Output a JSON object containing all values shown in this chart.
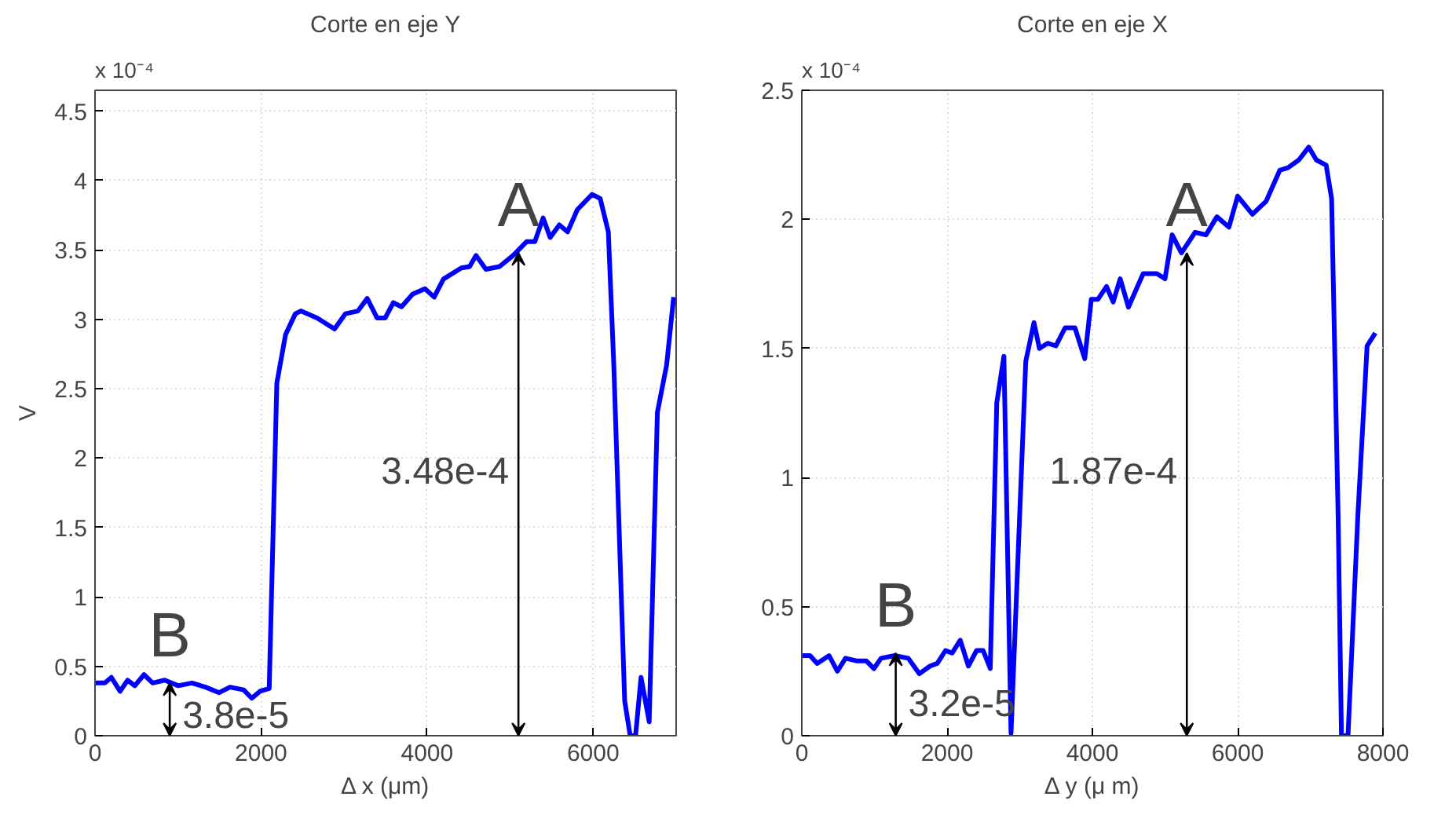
{
  "chart_data": [
    {
      "type": "line",
      "title": "Corte en eje Y",
      "xlabel": "Δ x (μm)",
      "ylabel": "V",
      "xlim": [
        0,
        7000
      ],
      "xticks": [
        0,
        2000,
        4000,
        6000
      ],
      "ylim": [
        0,
        4.65
      ],
      "yticks": [
        0,
        0.5,
        1,
        1.5,
        2,
        2.5,
        3,
        3.5,
        4,
        4.5
      ],
      "grid": true,
      "line_style": "solid",
      "marker": "none",
      "annotations": [
        "x 10⁻⁴",
        {
          "text": "A",
          "x": 5100,
          "y": 3.48
        },
        "3.48e-4",
        {
          "text": "B",
          "x": 900,
          "y": 0.38
        },
        "3.8e-5"
      ],
      "series": [
        {
          "color": "#0000ff",
          "x": [
            0,
            118,
            197,
            302,
            393,
            479,
            590,
            695,
            839,
            1003,
            1167,
            1331,
            1495,
            1626,
            1790,
            1888,
            1987,
            2098,
            2190,
            2295,
            2413,
            2479,
            2675,
            2885,
            3016,
            3167,
            3279,
            3397,
            3495,
            3593,
            3692,
            3823,
            3974,
            4085,
            4197,
            4413,
            4512,
            4590,
            4708,
            4872,
            5036,
            5200,
            5298,
            5397,
            5482,
            5593,
            5692,
            5810,
            5987,
            6085,
            6183,
            6249,
            6380,
            6446,
            6511,
            6577,
            6675,
            6774,
            6885,
            6970
          ],
          "values": [
            0.38,
            0.38,
            0.42,
            0.32,
            0.4,
            0.36,
            0.44,
            0.38,
            0.4,
            0.36,
            0.38,
            0.35,
            0.31,
            0.35,
            0.33,
            0.27,
            0.32,
            0.34,
            2.54,
            2.89,
            3.04,
            3.06,
            3.01,
            2.93,
            3.04,
            3.06,
            3.15,
            3.01,
            3.01,
            3.12,
            3.09,
            3.18,
            3.22,
            3.16,
            3.29,
            3.37,
            3.38,
            3.46,
            3.36,
            3.38,
            3.46,
            3.56,
            3.56,
            3.73,
            3.59,
            3.68,
            3.63,
            3.79,
            3.9,
            3.87,
            3.63,
            2.67,
            0.25,
            0,
            0,
            0.42,
            0.1,
            2.33,
            2.67,
            3.16
          ]
        }
      ]
    },
    {
      "type": "line",
      "title": "Corte en eje X",
      "xlabel": "Δ y (μ m)",
      "xlim": [
        0,
        8000
      ],
      "xticks": [
        0,
        2000,
        4000,
        6000,
        8000
      ],
      "ylim": [
        0,
        2.5
      ],
      "yticks": [
        0,
        0.5,
        1,
        1.5,
        2,
        2.5
      ],
      "grid": true,
      "line_style": "solid",
      "marker": "none",
      "annotations": [
        "x 10⁻⁴",
        {
          "text": "A",
          "x": 5300,
          "y": 1.87
        },
        "1.87e-4",
        {
          "text": "B",
          "x": 1293,
          "y": 0.32
        },
        "3.2e-5"
      ],
      "series": [
        {
          "color": "#0000ff",
          "x": [
            0,
            113,
            211,
            376,
            489,
            602,
            752,
            887,
            993,
            1090,
            1278,
            1466,
            1617,
            1767,
            1865,
            1978,
            2068,
            2181,
            2293,
            2406,
            2496,
            2594,
            2684,
            2782,
            2880,
            3083,
            3196,
            3271,
            3384,
            3497,
            3624,
            3760,
            3895,
            3985,
            4075,
            4195,
            4286,
            4383,
            4496,
            4699,
            4887,
            5000,
            5098,
            5226,
            5414,
            5564,
            5714,
            5880,
            6000,
            6203,
            6391,
            6579,
            6692,
            6842,
            6978,
            7083,
            7218,
            7293,
            7383,
            7429,
            7519,
            7654,
            7782,
            7895
          ],
          "values": [
            0.31,
            0.31,
            0.28,
            0.31,
            0.25,
            0.3,
            0.29,
            0.29,
            0.26,
            0.3,
            0.31,
            0.3,
            0.24,
            0.27,
            0.28,
            0.33,
            0.32,
            0.37,
            0.27,
            0.33,
            0.33,
            0.26,
            1.29,
            1.47,
            0.01,
            1.45,
            1.6,
            1.5,
            1.52,
            1.51,
            1.58,
            1.58,
            1.46,
            1.69,
            1.69,
            1.74,
            1.68,
            1.77,
            1.66,
            1.79,
            1.79,
            1.77,
            1.94,
            1.87,
            1.95,
            1.94,
            2.01,
            1.97,
            2.09,
            2.02,
            2.07,
            2.19,
            2.2,
            2.23,
            2.28,
            2.23,
            2.21,
            2.08,
            0.85,
            0,
            0,
            0.85,
            1.51,
            1.56
          ]
        }
      ]
    }
  ]
}
